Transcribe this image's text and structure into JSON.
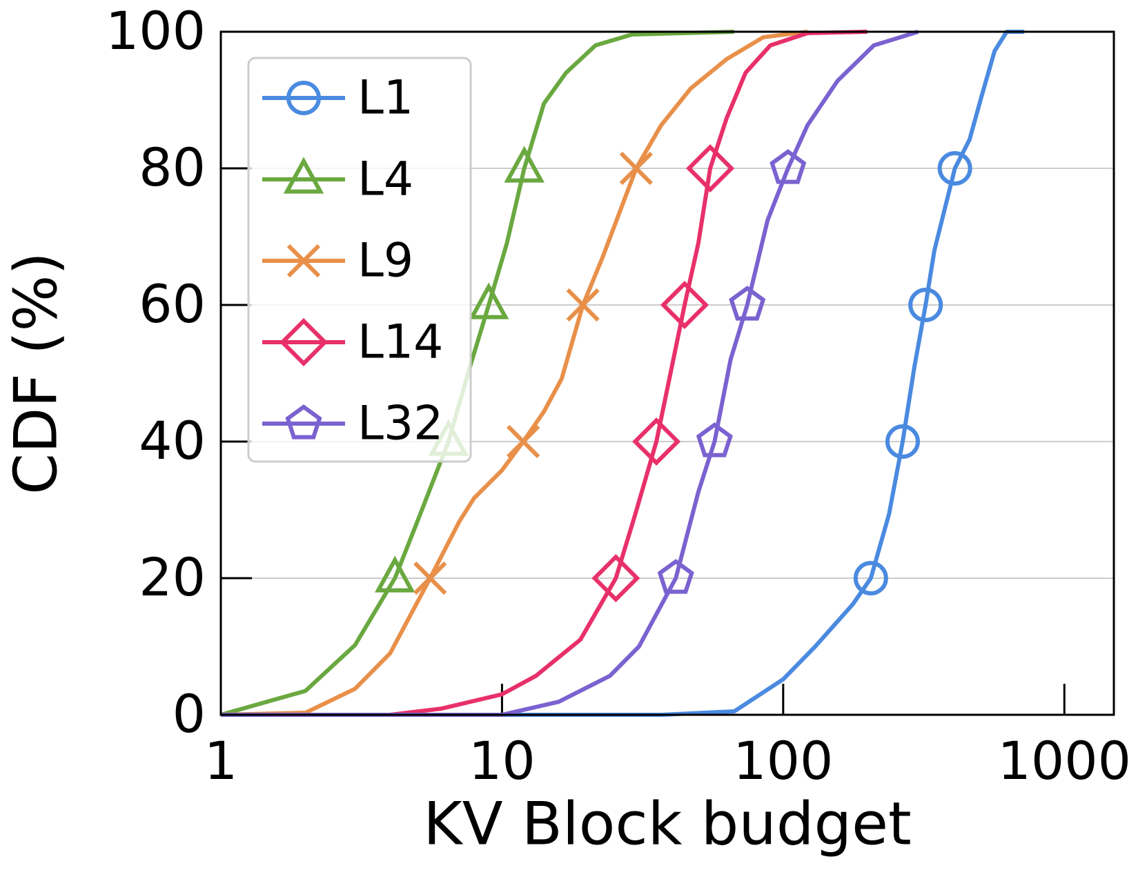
{
  "chart_data": {
    "type": "line",
    "x_label": "KV Block budget",
    "y_label": "CDF (%)",
    "xscale": "log",
    "xlim": [
      1,
      1500
    ],
    "xticks": [
      1,
      10,
      100,
      1000
    ],
    "ylim": [
      0,
      100
    ],
    "yticks": [
      0,
      20,
      40,
      60,
      80,
      100
    ],
    "grid": "y",
    "legend": "upper left",
    "series": [
      {
        "name": "L1",
        "color": "#4a8ae0",
        "marker": "circle",
        "x": [
          1,
          37,
          67,
          100,
          130,
          177,
          205,
          238,
          266,
          293,
          321,
          345,
          408,
          460,
          508,
          565,
          624,
          720
        ],
        "values": [
          0,
          0,
          0.5,
          5.2,
          10,
          16.2,
          20,
          29.4,
          40,
          51,
          60,
          68,
          80,
          84.2,
          90.6,
          97.2,
          100,
          100
        ]
      },
      {
        "name": "L4",
        "color": "#6aa840",
        "marker": "triangle",
        "x": [
          1,
          2,
          3,
          4.16,
          5,
          6.45,
          7.7,
          8.97,
          10.4,
          12,
          14.1,
          16.9,
          21.5,
          29,
          67
        ],
        "values": [
          0,
          3.5,
          10.2,
          20,
          28.3,
          40,
          51,
          60,
          69,
          80,
          89.5,
          94,
          98,
          99.6,
          100
        ]
      },
      {
        "name": "L9",
        "color": "#e8904a",
        "marker": "x",
        "x": [
          1,
          2,
          3,
          4,
          5.55,
          7.05,
          7.95,
          10,
          11.9,
          14.1,
          16.3,
          19.4,
          22.8,
          30,
          36.8,
          46.9,
          63,
          85,
          122
        ],
        "values": [
          0,
          0.3,
          3.8,
          9,
          20,
          28.3,
          31.7,
          35.8,
          40,
          44.4,
          49.2,
          60,
          67,
          80,
          86.3,
          91.7,
          96,
          99.2,
          100
        ]
      },
      {
        "name": "L14",
        "color": "#e8306a",
        "marker": "diamond",
        "x": [
          1,
          4,
          6.08,
          10,
          13.2,
          19,
          25.4,
          29.8,
          35.4,
          40.2,
          44.6,
          49.9,
          55,
          63,
          73.5,
          90,
          122,
          199
        ],
        "values": [
          0,
          0,
          0.9,
          3,
          5.7,
          11,
          20,
          29.4,
          40,
          51,
          60,
          69,
          80,
          87.4,
          94,
          98,
          99.8,
          100
        ]
      },
      {
        "name": "L32",
        "color": "#7a62d0",
        "marker": "pentagon",
        "x": [
          1,
          10,
          15.9,
          24.2,
          30.7,
          41.5,
          49.9,
          57,
          65,
          74.5,
          88,
          104,
          122,
          156,
          210,
          302
        ],
        "values": [
          0,
          0,
          1.9,
          5.7,
          10,
          20,
          32.6,
          40,
          52,
          60,
          72.4,
          80,
          86.3,
          92.8,
          98,
          100
        ]
      }
    ]
  }
}
